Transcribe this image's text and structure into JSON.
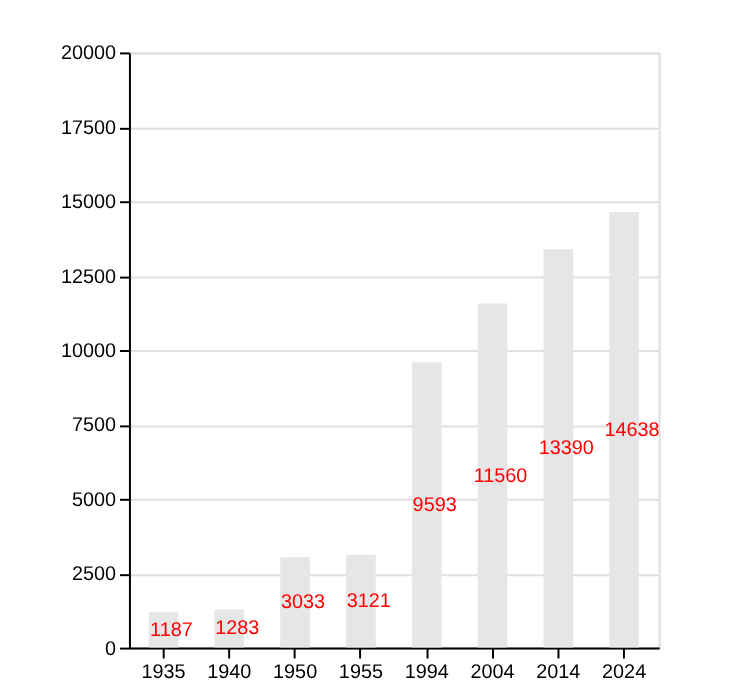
{
  "chart_data": {
    "type": "bar",
    "categories": [
      "1935",
      "1940",
      "1950",
      "1955",
      "1994",
      "2004",
      "2014",
      "2024"
    ],
    "values": [
      1187,
      1283,
      3033,
      3121,
      9593,
      11560,
      13390,
      14638
    ],
    "color": "#e6e6e6",
    "ylim": [
      0,
      20000
    ],
    "yticks": [
      0,
      2500,
      5000,
      7500,
      10000,
      12500,
      15000,
      17500,
      20000
    ],
    "grid": "y",
    "data_labels": true
  }
}
